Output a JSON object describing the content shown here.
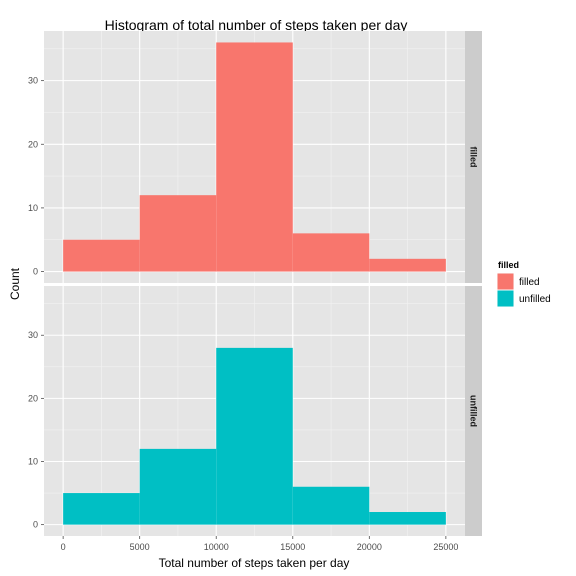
{
  "chart_data": {
    "type": "bar",
    "title": "Histogram of total number of steps taken per day",
    "xlabel": "Total number of steps taken per day",
    "ylabel": "Count",
    "xlim": [
      -1250,
      26250
    ],
    "ylim": [
      -1.8,
      37.8
    ],
    "x_ticks": [
      0,
      5000,
      10000,
      15000,
      20000,
      25000
    ],
    "y_ticks": [
      0,
      10,
      20,
      30
    ],
    "bin_edges": [
      0,
      5000,
      10000,
      15000,
      20000,
      25000
    ],
    "grid": true,
    "legend": {
      "title": "filled",
      "position": "right",
      "entries": [
        {
          "label": "filled",
          "color": "#F8766D"
        },
        {
          "label": "unfilled",
          "color": "#00BFC4"
        }
      ]
    },
    "panels": [
      {
        "strip": "filled",
        "color": "#F8766D",
        "counts": [
          5,
          12,
          36,
          6,
          2
        ]
      },
      {
        "strip": "unfilled",
        "color": "#00BFC4",
        "counts": [
          5,
          12,
          28,
          6,
          2
        ]
      }
    ],
    "colors": {
      "panel_background": "#E5E5E5",
      "grid_major": "#FFFFFF",
      "grid_minor": "#F2F2F2",
      "strip_background": "#CCCCCC",
      "tick_text": "#4D4D4D"
    }
  }
}
